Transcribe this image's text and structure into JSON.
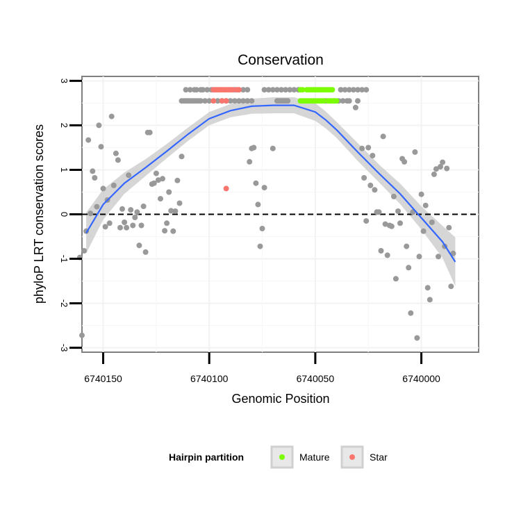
{
  "chart_data": {
    "type": "scatter",
    "title": "Conservation",
    "xlabel": "Genomic Position",
    "ylabel": "phyloP LRT conservation scores",
    "x_reversed": true,
    "xlim": [
      6740160,
      6739973
    ],
    "ylim": [
      -3.1,
      3.1
    ],
    "x_ticks": [
      6740150,
      6740100,
      6740050,
      6740000
    ],
    "x_tick_labels": [
      "6740150",
      "6740100",
      "6740050",
      "6740000"
    ],
    "y_ticks": [
      -3,
      -2,
      -1,
      0,
      1,
      2,
      3
    ],
    "y_tick_labels": [
      "-3",
      "-2",
      "-1",
      "0",
      "1",
      "2",
      "3"
    ],
    "hline": 0,
    "grid": true,
    "legend": {
      "title": "Hairpin partition",
      "position": "bottom",
      "entries": [
        {
          "label": "Mature",
          "color": "#7CFC00"
        },
        {
          "label": "Star",
          "color": "#F8766D"
        }
      ]
    },
    "colors": {
      "other": "#999999",
      "mature": "#7CFC00",
      "star": "#F8766D",
      "smooth": "#3366FF",
      "ribbon": "#cfcfcf"
    },
    "series": [
      {
        "name": "Other",
        "points": [
          [
            6740161,
            -0.97
          ],
          [
            6740160,
            -2.72
          ],
          [
            6740159,
            -0.82
          ],
          [
            6740158,
            -0.38
          ],
          [
            6740157,
            1.67
          ],
          [
            6740156,
            0.02
          ],
          [
            6740155,
            0.97
          ],
          [
            6740154,
            0.82
          ],
          [
            6740153,
            0.17
          ],
          [
            6740152,
            2.0
          ],
          [
            6740151,
            1.52
          ],
          [
            6740150,
            0.58
          ],
          [
            6740149,
            -0.28
          ],
          [
            6740148,
            0.32
          ],
          [
            6740147,
            -0.2
          ],
          [
            6740146,
            2.2
          ],
          [
            6740145,
            0.65
          ],
          [
            6740144,
            1.37
          ],
          [
            6740143,
            1.22
          ],
          [
            6740142,
            -0.3
          ],
          [
            6740141,
            0.12
          ],
          [
            6740140,
            -0.18
          ],
          [
            6740139,
            -0.3
          ],
          [
            6740138,
            0.88
          ],
          [
            6740137,
            0.1
          ],
          [
            6740136,
            -0.25
          ],
          [
            6740135,
            -0.07
          ],
          [
            6740134,
            0.05
          ],
          [
            6740133,
            -0.7
          ],
          [
            6740132,
            -0.25
          ],
          [
            6740131,
            0.18
          ],
          [
            6740130,
            -0.85
          ],
          [
            6740129,
            1.84
          ],
          [
            6740128,
            1.84
          ],
          [
            6740127,
            0.68
          ],
          [
            6740126,
            0.7
          ],
          [
            6740125,
            0.92
          ],
          [
            6740124,
            0.77
          ],
          [
            6740123,
            0.35
          ],
          [
            6740122,
            0.8
          ],
          [
            6740121,
            -0.37
          ],
          [
            6740120,
            -0.2
          ],
          [
            6740119,
            0.5
          ],
          [
            6740118,
            0.08
          ],
          [
            6740117,
            -0.38
          ],
          [
            6740116,
            0.07
          ],
          [
            6740115,
            0.76
          ],
          [
            6740114,
            0.25
          ],
          [
            6740113,
            1.3
          ],
          [
            6740113,
            2.55
          ],
          [
            6740112,
            2.55
          ],
          [
            6740111,
            2.55
          ],
          [
            6740110,
            2.55
          ],
          [
            6740109,
            2.55
          ],
          [
            6740108,
            2.55
          ],
          [
            6740107,
            2.55
          ],
          [
            6740106,
            2.55
          ],
          [
            6740105,
            2.55
          ],
          [
            6740104,
            2.55
          ],
          [
            6740102,
            2.55
          ],
          [
            6740100,
            2.55
          ],
          [
            6740096,
            2.55
          ],
          [
            6740094,
            2.55
          ],
          [
            6740092,
            2.55
          ],
          [
            6740090,
            2.55
          ],
          [
            6740088,
            2.55
          ],
          [
            6740086,
            2.55
          ],
          [
            6740084,
            2.55
          ],
          [
            6740082,
            2.55
          ],
          [
            6740080,
            2.55
          ],
          [
            6740111,
            2.8
          ],
          [
            6740109,
            2.8
          ],
          [
            6740107,
            2.8
          ],
          [
            6740106,
            2.8
          ],
          [
            6740104,
            2.8
          ],
          [
            6740103,
            2.8
          ],
          [
            6740101,
            2.8
          ],
          [
            6740099,
            2.8
          ],
          [
            6740088,
            2.8
          ],
          [
            6740086,
            2.8
          ],
          [
            6740084,
            2.8
          ],
          [
            6740082,
            2.8
          ],
          [
            6740074,
            2.8
          ],
          [
            6740072,
            2.8
          ],
          [
            6740070,
            2.8
          ],
          [
            6740068,
            2.8
          ],
          [
            6740066,
            2.8
          ],
          [
            6740064,
            2.8
          ],
          [
            6740062,
            2.8
          ],
          [
            6740060,
            2.8
          ],
          [
            6740058,
            2.8
          ],
          [
            6740081,
            1.18
          ],
          [
            6740080,
            1.48
          ],
          [
            6740079,
            1.5
          ],
          [
            6740078,
            0.7
          ],
          [
            6740077,
            0.22
          ],
          [
            6740076,
            -0.72
          ],
          [
            6740075,
            -0.32
          ],
          [
            6740074,
            0.6
          ],
          [
            6740070,
            1.48
          ],
          [
            6740068,
            2.55
          ],
          [
            6740067,
            2.55
          ],
          [
            6740066,
            2.55
          ],
          [
            6740065,
            2.55
          ],
          [
            6740064,
            2.55
          ],
          [
            6740063,
            2.55
          ],
          [
            6740045,
            2.55
          ],
          [
            6740043,
            2.55
          ],
          [
            6740041,
            2.55
          ],
          [
            6740039,
            2.55
          ],
          [
            6740037,
            2.55
          ],
          [
            6740035,
            2.55
          ],
          [
            6740034,
            2.55
          ],
          [
            6740038,
            2.8
          ],
          [
            6740036,
            2.8
          ],
          [
            6740034,
            2.8
          ],
          [
            6740032,
            2.8
          ],
          [
            6740030,
            2.8
          ],
          [
            6740028,
            2.8
          ],
          [
            6740026,
            2.8
          ],
          [
            6740031,
            2.4
          ],
          [
            6740030,
            2.55
          ],
          [
            6740028,
            1.48
          ],
          [
            6740027,
            0.82
          ],
          [
            6740026,
            -0.15
          ],
          [
            6740025,
            1.5
          ],
          [
            6740024,
            0.65
          ],
          [
            6740023,
            1.32
          ],
          [
            6740022,
            0.55
          ],
          [
            6740021,
            0.05
          ],
          [
            6740020,
            0.05
          ],
          [
            6740019,
            -0.82
          ],
          [
            6740018,
            1.75
          ],
          [
            6740017,
            -0.22
          ],
          [
            6740016,
            -0.92
          ],
          [
            6740015,
            -0.25
          ],
          [
            6740014,
            -0.27
          ],
          [
            6740013,
            0.4
          ],
          [
            6740012,
            -1.45
          ],
          [
            6740011,
            0.07
          ],
          [
            6740010,
            -0.2
          ],
          [
            6740009,
            1.25
          ],
          [
            6740008,
            1.18
          ],
          [
            6740007,
            -0.72
          ],
          [
            6740006,
            -1.2
          ],
          [
            6740005,
            -2.22
          ],
          [
            6740004,
            0.05
          ],
          [
            6740003,
            1.4
          ],
          [
            6740002,
            -2.78
          ],
          [
            6740001,
            -0.95
          ],
          [
            6740000,
            0.45
          ],
          [
            6739999,
            -0.38
          ],
          [
            6739998,
            0.2
          ],
          [
            6739997,
            -1.65
          ],
          [
            6739996,
            -1.92
          ],
          [
            6739995,
            -0.18
          ],
          [
            6739994,
            0.9
          ],
          [
            6739993,
            1.02
          ],
          [
            6739992,
            -0.95
          ],
          [
            6739991,
            1.07
          ],
          [
            6739990,
            1.17
          ],
          [
            6739989,
            -0.72
          ],
          [
            6739988,
            1.03
          ],
          [
            6739987,
            -0.3
          ],
          [
            6739986,
            -1.62
          ],
          [
            6739985,
            -0.88
          ]
        ]
      },
      {
        "name": "Star",
        "points": [
          [
            6740098,
            2.8
          ],
          [
            6740097,
            2.8
          ],
          [
            6740096,
            2.8
          ],
          [
            6740095,
            2.8
          ],
          [
            6740094,
            2.8
          ],
          [
            6740093,
            2.8
          ],
          [
            6740092,
            2.8
          ],
          [
            6740091,
            2.8
          ],
          [
            6740090,
            2.8
          ],
          [
            6740089,
            2.8
          ],
          [
            6740098,
            2.55
          ],
          [
            6740094,
            2.55
          ],
          [
            6740092,
            2.55
          ],
          [
            6740092,
            0.58
          ],
          [
            6740087,
            2.8
          ],
          [
            6740086,
            2.8
          ]
        ]
      },
      {
        "name": "Mature",
        "points": [
          [
            6740057,
            2.8
          ],
          [
            6740056,
            2.8
          ],
          [
            6740054,
            2.8
          ],
          [
            6740053,
            2.8
          ],
          [
            6740052,
            2.8
          ],
          [
            6740051,
            2.8
          ],
          [
            6740050,
            2.8
          ],
          [
            6740049,
            2.8
          ],
          [
            6740048,
            2.8
          ],
          [
            6740047,
            2.8
          ],
          [
            6740046,
            2.8
          ],
          [
            6740045,
            2.8
          ],
          [
            6740044,
            2.8
          ],
          [
            6740043,
            2.8
          ],
          [
            6740042,
            2.8
          ],
          [
            6740057,
            2.55
          ],
          [
            6740056,
            2.55
          ],
          [
            6740055,
            2.55
          ],
          [
            6740054,
            2.55
          ],
          [
            6740053,
            2.55
          ],
          [
            6740052,
            2.55
          ],
          [
            6740051,
            2.55
          ],
          [
            6740050,
            2.55
          ],
          [
            6740049,
            2.55
          ],
          [
            6740048,
            2.55
          ],
          [
            6740047,
            2.55
          ],
          [
            6740046,
            2.55
          ],
          [
            6740044,
            2.55
          ],
          [
            6740043,
            2.55
          ],
          [
            6740042,
            2.55
          ],
          [
            6740041,
            2.55
          ],
          [
            6740040,
            2.55
          ]
        ]
      }
    ],
    "smooth": {
      "x": [
        6740158,
        6740150,
        6740140,
        6740130,
        6740120,
        6740110,
        6740100,
        6740090,
        6740080,
        6740070,
        6740060,
        6740050,
        6740045,
        6740040,
        6740030,
        6740020,
        6740010,
        6740000,
        6739990,
        6739984
      ],
      "y": [
        -0.42,
        0.22,
        0.7,
        1.05,
        1.42,
        1.8,
        2.15,
        2.33,
        2.43,
        2.45,
        2.45,
        2.3,
        2.12,
        1.9,
        1.4,
        0.92,
        0.46,
        -0.08,
        -0.62,
        -1.07
      ],
      "lower": [
        -0.88,
        -0.12,
        0.46,
        0.86,
        1.26,
        1.65,
        2.0,
        2.18,
        2.26,
        2.27,
        2.27,
        2.1,
        1.93,
        1.72,
        1.2,
        0.72,
        0.23,
        -0.34,
        -0.98,
        -1.62
      ],
      "upper": [
        0.04,
        0.56,
        0.94,
        1.24,
        1.58,
        1.95,
        2.3,
        2.48,
        2.6,
        2.63,
        2.63,
        2.5,
        2.31,
        2.08,
        1.6,
        1.12,
        0.69,
        0.18,
        -0.26,
        -0.52
      ]
    }
  }
}
